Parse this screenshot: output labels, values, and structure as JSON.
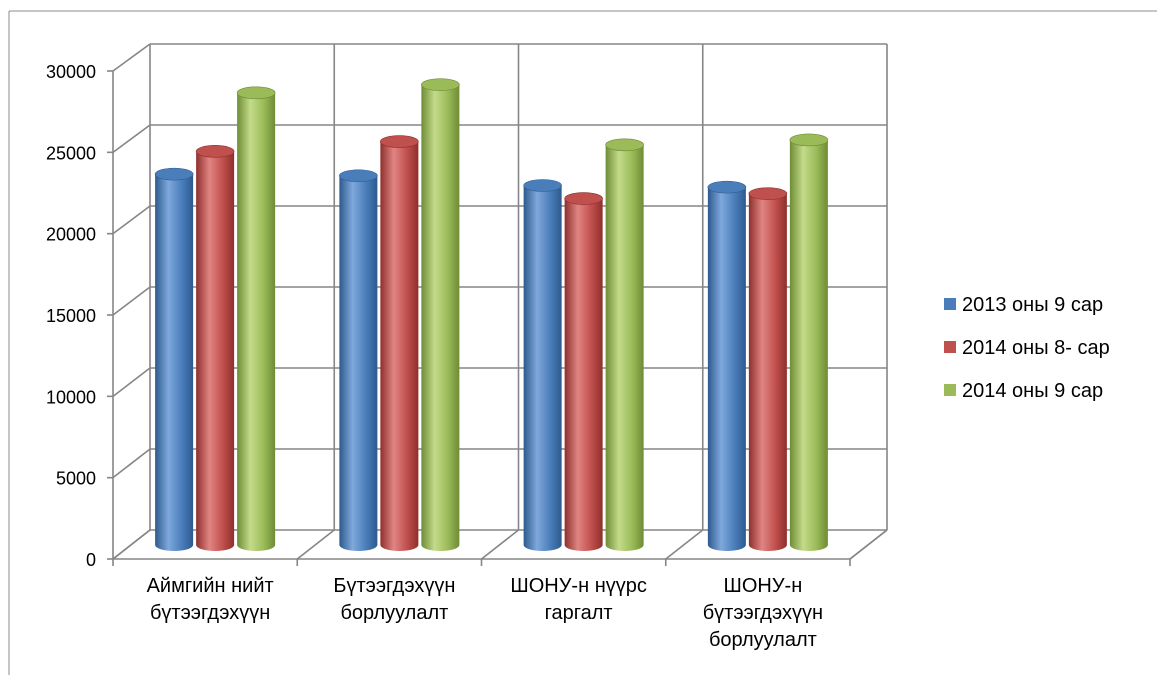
{
  "chart_data": {
    "type": "bar",
    "categories": [
      [
        "Аймгийн нийт",
        "бүтээгдэхүүн"
      ],
      [
        "Бүтээгдэхүүн",
        "борлуулалт"
      ],
      [
        "ШОНУ-н нүүрс",
        "гаргалт"
      ],
      [
        "ШОНУ-н",
        "бүтээгдэхүүн",
        "борлуулалт"
      ]
    ],
    "series": [
      {
        "name": "2013 оны 9 сар",
        "values": [
          22800,
          22700,
          22100,
          22000
        ]
      },
      {
        "name": "2014 оны 8- сар",
        "values": [
          24200,
          24800,
          21300,
          21600
        ]
      },
      {
        "name": "2014 оны 9 сар",
        "values": [
          27800,
          28300,
          24600,
          24900
        ]
      }
    ],
    "ylim": [
      0,
      30000
    ],
    "yticks": [
      0,
      5000,
      10000,
      15000,
      20000,
      25000,
      30000
    ],
    "grid": true,
    "legend": "right",
    "colors": {
      "series": [
        "#4a7ebb",
        "#c0504d",
        "#9bbb59"
      ],
      "series_dark": [
        "#2d5a8e",
        "#8e2f2d",
        "#6e8c35"
      ],
      "series_light": [
        "#7fa8dc",
        "#e08582",
        "#c3db8a"
      ],
      "grid": "#868686"
    }
  }
}
